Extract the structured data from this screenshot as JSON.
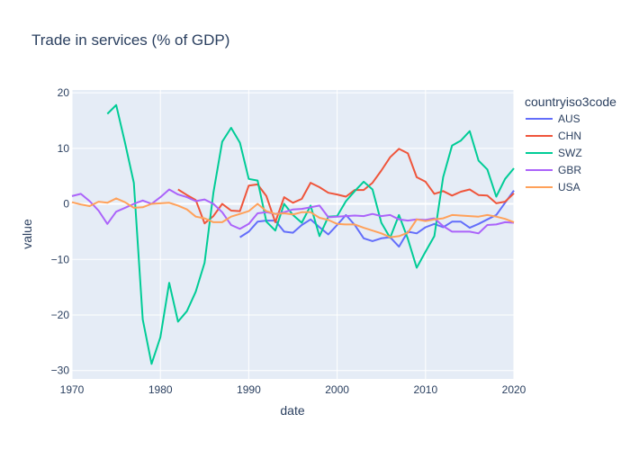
{
  "chart_data": {
    "type": "line",
    "title": "Trade in services (% of GDP)",
    "xlabel": "date",
    "ylabel": "value",
    "xlim": [
      1970,
      2020
    ],
    "ylim": [
      -31.5,
      20.5
    ],
    "x_ticks": [
      1970,
      1980,
      1990,
      2000,
      2010,
      2020
    ],
    "y_ticks": [
      -30,
      -20,
      -10,
      0,
      10,
      20
    ],
    "legend_title": "countryiso3code",
    "legend_position": "right",
    "grid": true,
    "colors": {
      "plot_bg": "#E5ECF6",
      "grid": "#ffffff",
      "text": "#2a3f5f"
    },
    "series": [
      {
        "name": "AUS",
        "color": "#636EFA",
        "x": [
          1989,
          1990,
          1991,
          1992,
          1993,
          1994,
          1995,
          1996,
          1997,
          1998,
          1999,
          2000,
          2001,
          2002,
          2003,
          2004,
          2005,
          2006,
          2007,
          2008,
          2009,
          2010,
          2011,
          2012,
          2013,
          2014,
          2015,
          2016,
          2017,
          2018,
          2019,
          2020
        ],
        "y": [
          -6.0,
          -5.0,
          -3.2,
          -3.0,
          -3.0,
          -5.0,
          -5.2,
          -3.8,
          -2.8,
          -4.2,
          -5.5,
          -3.8,
          -2.0,
          -3.8,
          -6.2,
          -6.7,
          -6.2,
          -6.0,
          -7.7,
          -5.0,
          -5.3,
          -4.2,
          -3.6,
          -4.2,
          -3.2,
          -3.2,
          -4.3,
          -3.6,
          -2.8,
          -2.0,
          0.2,
          2.4
        ]
      },
      {
        "name": "CHN",
        "color": "#EF553B",
        "x": [
          1982,
          1983,
          1984,
          1985,
          1986,
          1987,
          1988,
          1989,
          1990,
          1991,
          1992,
          1993,
          1994,
          1995,
          1996,
          1997,
          1998,
          1999,
          2000,
          2001,
          2002,
          2003,
          2004,
          2005,
          2006,
          2007,
          2008,
          2009,
          2010,
          2011,
          2012,
          2013,
          2014,
          2015,
          2016,
          2017,
          2018,
          2019,
          2020
        ],
        "y": [
          2.6,
          1.6,
          0.7,
          -3.5,
          -2.2,
          0.0,
          -1.2,
          -1.3,
          3.3,
          3.5,
          1.4,
          -3.3,
          1.2,
          0.2,
          0.9,
          3.8,
          3.0,
          2.0,
          1.7,
          1.3,
          2.5,
          2.5,
          3.8,
          6.0,
          8.4,
          9.9,
          9.1,
          4.8,
          4.0,
          1.8,
          2.3,
          1.5,
          2.2,
          2.6,
          1.6,
          1.5,
          0.1,
          0.4,
          1.9
        ]
      },
      {
        "name": "SWZ",
        "color": "#00CC96",
        "x": [
          1974,
          1975,
          1976,
          1977,
          1978,
          1979,
          1980,
          1981,
          1982,
          1983,
          1984,
          1985,
          1986,
          1987,
          1988,
          1989,
          1990,
          1991,
          1992,
          1993,
          1994,
          1995,
          1996,
          1997,
          1998,
          1999,
          2000,
          2001,
          2002,
          2003,
          2004,
          2005,
          2006,
          2007,
          2008,
          2009,
          2010,
          2011,
          2012,
          2013,
          2014,
          2015,
          2016,
          2017,
          2018,
          2019,
          2020
        ],
        "y": [
          16.2,
          17.8,
          11.0,
          3.8,
          -20.8,
          -28.8,
          -24.0,
          -14.2,
          -21.2,
          -19.3,
          -15.8,
          -10.6,
          2.0,
          11.2,
          13.7,
          11.0,
          4.5,
          4.2,
          -3.2,
          -4.8,
          0.0,
          -2.0,
          -3.4,
          -0.3,
          -5.8,
          -2.3,
          -2.2,
          0.5,
          2.3,
          4.0,
          2.6,
          -3.4,
          -6.1,
          -2.0,
          -6.3,
          -11.5,
          -8.6,
          -5.8,
          4.8,
          10.5,
          11.4,
          13.1,
          7.8,
          6.2,
          1.3,
          4.5,
          6.4
        ]
      },
      {
        "name": "GBR",
        "color": "#AB63FA",
        "x": [
          1970,
          1971,
          1972,
          1973,
          1974,
          1975,
          1976,
          1977,
          1978,
          1979,
          1980,
          1981,
          1982,
          1983,
          1984,
          1985,
          1986,
          1987,
          1988,
          1989,
          1990,
          1991,
          1992,
          1993,
          1994,
          1995,
          1996,
          1997,
          1998,
          1999,
          2000,
          2001,
          2002,
          2003,
          2004,
          2005,
          2006,
          2007,
          2008,
          2009,
          2010,
          2011,
          2012,
          2013,
          2014,
          2015,
          2016,
          2017,
          2018,
          2019,
          2020
        ],
        "y": [
          1.4,
          1.8,
          0.5,
          -1.2,
          -3.6,
          -1.4,
          -0.7,
          0.0,
          0.6,
          0.0,
          1.2,
          2.6,
          1.7,
          1.2,
          0.5,
          0.8,
          0.0,
          -1.5,
          -3.8,
          -4.5,
          -3.6,
          -1.7,
          -1.5,
          -1.8,
          -1.5,
          -1.0,
          -0.9,
          -0.6,
          -0.3,
          -2.4,
          -2.3,
          -2.2,
          -2.1,
          -2.2,
          -1.8,
          -2.2,
          -2.0,
          -2.8,
          -3.0,
          -2.8,
          -2.9,
          -2.6,
          -4.0,
          -5.0,
          -5.0,
          -5.0,
          -5.3,
          -3.8,
          -3.7,
          -3.3,
          -3.4
        ]
      },
      {
        "name": "USA",
        "color": "#FFA15A",
        "x": [
          1970,
          1971,
          1972,
          1973,
          1974,
          1975,
          1976,
          1977,
          1978,
          1979,
          1980,
          1981,
          1982,
          1983,
          1984,
          1985,
          1986,
          1987,
          1988,
          1989,
          1990,
          1991,
          1992,
          1993,
          1994,
          1995,
          1996,
          1997,
          1998,
          1999,
          2000,
          2001,
          2002,
          2003,
          2004,
          2005,
          2006,
          2007,
          2008,
          2009,
          2010,
          2011,
          2012,
          2013,
          2014,
          2015,
          2016,
          2017,
          2018,
          2019,
          2020
        ],
        "y": [
          0.3,
          -0.1,
          -0.4,
          0.4,
          0.2,
          1.0,
          0.3,
          -0.7,
          -0.6,
          0.0,
          0.1,
          0.2,
          -0.3,
          -1.0,
          -2.3,
          -2.6,
          -3.3,
          -3.3,
          -2.3,
          -1.8,
          -1.3,
          0.0,
          -1.3,
          -1.8,
          -1.7,
          -1.9,
          -1.5,
          -1.5,
          -2.5,
          -2.9,
          -3.6,
          -3.7,
          -3.7,
          -4.3,
          -4.8,
          -5.3,
          -6.0,
          -5.8,
          -5.2,
          -2.8,
          -3.1,
          -2.8,
          -2.6,
          -2.0,
          -2.1,
          -2.2,
          -2.3,
          -2.0,
          -2.3,
          -2.7,
          -3.3
        ]
      }
    ]
  }
}
